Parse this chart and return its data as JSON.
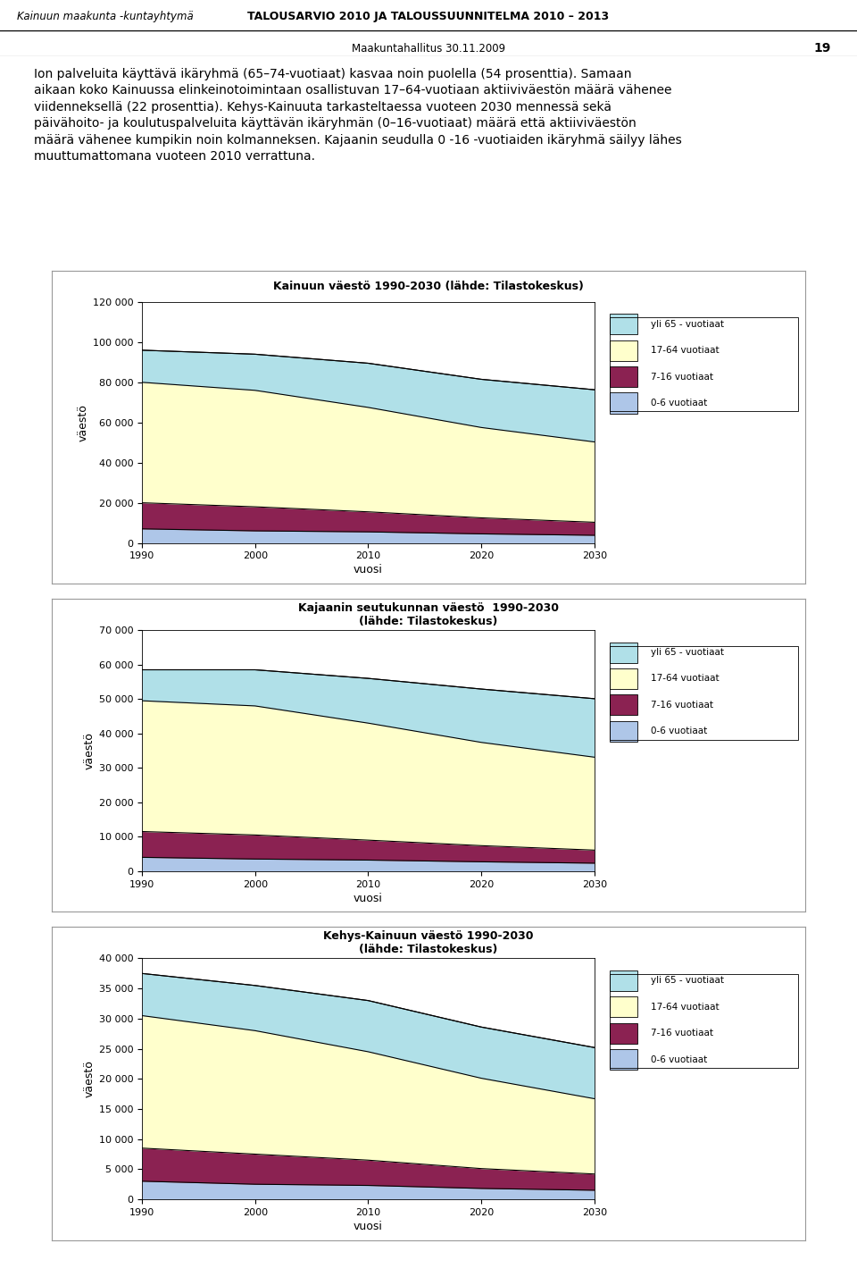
{
  "years": [
    1990,
    2000,
    2010,
    2020,
    2030
  ],
  "chart1": {
    "title": "Kainuun väestö 1990-2030 (lähde: Tilastokeskus)",
    "ylabel": "väestö",
    "xlabel": "vuosi",
    "ylim": [
      0,
      120000
    ],
    "yticks": [
      0,
      20000,
      40000,
      60000,
      80000,
      100000,
      120000
    ],
    "data": {
      "0_6": [
        7000,
        6000,
        5500,
        4500,
        3800
      ],
      "7_16": [
        13000,
        12000,
        10000,
        8000,
        6500
      ],
      "17_64": [
        60000,
        58000,
        52000,
        45000,
        40000
      ],
      "65p": [
        16000,
        18000,
        22000,
        24000,
        26000
      ]
    },
    "total": [
      96000,
      94000,
      89500,
      81500,
      76300
    ]
  },
  "chart2": {
    "title": "Kajaanin seutukunnan väestö  1990-2030\n(lähde: Tilastokeskus)",
    "ylabel": "väestö",
    "xlabel": "vuosi",
    "ylim": [
      0,
      70000
    ],
    "yticks": [
      0,
      10000,
      20000,
      30000,
      40000,
      50000,
      60000,
      70000
    ],
    "data": {
      "0_6": [
        4000,
        3500,
        3200,
        2700,
        2300
      ],
      "7_16": [
        7500,
        7000,
        5800,
        4700,
        3800
      ],
      "17_64": [
        38000,
        37500,
        34000,
        30000,
        27000
      ],
      "65p": [
        9000,
        10500,
        13000,
        15500,
        17000
      ]
    },
    "total": [
      58500,
      58500,
      56000,
      52900,
      50100
    ]
  },
  "chart3": {
    "title": "Kehys-Kainuun väestö 1990-2030\n(lähde: Tilastokeskus)",
    "ylabel": "väestö",
    "xlabel": "vuosi",
    "ylim": [
      0,
      40000
    ],
    "yticks": [
      0,
      5000,
      10000,
      15000,
      20000,
      25000,
      30000,
      35000,
      40000
    ],
    "data": {
      "0_6": [
        3000,
        2500,
        2300,
        1800,
        1500
      ],
      "7_16": [
        5500,
        5000,
        4200,
        3300,
        2700
      ],
      "17_64": [
        22000,
        20500,
        18000,
        15000,
        12500
      ],
      "65p": [
        7000,
        7500,
        8500,
        8500,
        8500
      ]
    },
    "total": [
      37500,
      35500,
      33000,
      28600,
      25200
    ]
  },
  "colors": {
    "0_6": "#aec6e8",
    "7_16": "#8b2252",
    "17_64": "#ffffcc",
    "65p": "#b0e0e8",
    "gray": "#b8b8b8"
  },
  "legend_labels": [
    "yli 65 - vuotiaat",
    "17-64 vuotiaat",
    "7-16 vuotiaat",
    "0-6 vuotiaat"
  ],
  "header_left": "Kainuun maakunta -kuntayhtymä",
  "header_center": "TALOUSARVIO 2010 JA TALOUSSUUNNITELMA 2010 – 2013",
  "header_right": "Maakuntahallitus 30.11.2009",
  "header_page": "19",
  "body_text": "Ion palveluita käyttävä ikäryhmä (65–74-vuotiaat) kasvaa noin puolella (54 prosenttia). Samaan aikaan koko Kainuussa elinkeinotoimintaan osallistuvan 17–64-vuotiaan aktiiviväestön määrä vähenee viidenneksellä (22 prosenttia). Kehys-Kainuuta tarkasteltaessa vuoteen 2030 mennessä sekä päivähoito- ja koulutuspalveluita käyttävän ikäryhmän (0–16-vuotiaat) määrä että aktiiviväestön määrä vähenee kumpikin noin kolmanneksen. Kajaanin seudulla 0 -16 -vuotiaiden ikäryhmä säilyy lähes muuttumattomana vuoteen 2010 verrattuna."
}
